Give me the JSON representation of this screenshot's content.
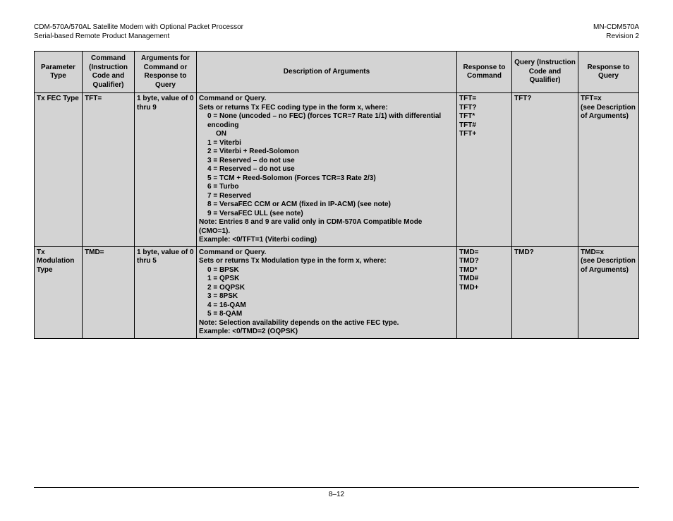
{
  "header": {
    "left_line1": "CDM-570A/570AL Satellite Modem with Optional Packet Processor",
    "left_line2": "Serial-based Remote Product Management",
    "right_line1": "MN-CDM570A",
    "right_line2": "Revision 2"
  },
  "columns": {
    "c1": "Parameter Type",
    "c2": "Command (Instruction Code and Qualifier)",
    "c3": "Arguments for Command or Response to Query",
    "c4": "Description of Arguments",
    "c5": "Response to Command",
    "c6": "Query (Instruction Code and Qualifier)",
    "c7": "Response to Query"
  },
  "rows": [
    {
      "param": "Tx FEC Type",
      "cmd": "TFT=",
      "args_l1": "1 byte, value of 0",
      "args_l2": "thru 9",
      "desc": [
        {
          "t": "Command or Query.",
          "cls": "bold"
        },
        {
          "t": "Sets or returns Tx FEC coding type in the form x, where:",
          "cls": "bold"
        },
        {
          "t": "0 = None (uncoded – no FEC) (forces TCR=7 Rate 1/1) with  differential encoding",
          "cls": "indent1 bold"
        },
        {
          "t": "ON",
          "cls": "indent2 bold"
        },
        {
          "t": "1 = Viterbi",
          "cls": "indent1 bold"
        },
        {
          "t": "2 = Viterbi + Reed-Solomon",
          "cls": "indent1 bold"
        },
        {
          "t": "3 = Reserved – do not use",
          "cls": "indent1 bold"
        },
        {
          "t": "4 = Reserved – do not use",
          "cls": "indent1 bold"
        },
        {
          "t": "5 = TCM + Reed-Solomon  (Forces TCR=3 Rate 2/3)",
          "cls": "indent1 bold"
        },
        {
          "t": "6 = Turbo",
          "cls": "indent1 bold"
        },
        {
          "t": "7 = Reserved",
          "cls": "indent1 bold"
        },
        {
          "t": "8 = VersaFEC CCM or ACM (fixed in IP-ACM) (see note)",
          "cls": "indent1 bold"
        },
        {
          "t": "9 = VersaFEC ULL (see note)",
          "cls": "indent1 bold"
        },
        {
          "t": "Note: Entries 8 and 9 are valid only in CDM-570A Compatible Mode (CMO=1).",
          "cls": "bold"
        },
        {
          "t": "Example: <0/TFT=1 (Viterbi coding)",
          "cls": "bold"
        }
      ],
      "respc": [
        "TFT=",
        "TFT?",
        "TFT*",
        "TFT#",
        "TFT+"
      ],
      "query": "TFT?",
      "respq": [
        "TFT=x",
        "(see Description",
        "of Arguments)"
      ]
    },
    {
      "param": "Tx Modulation Type",
      "cmd": "TMD=",
      "args_l1": "1 byte, value of 0",
      "args_l2": "thru 5",
      "desc": [
        {
          "t": "Command or Query.",
          "cls": "bold"
        },
        {
          "t": "Sets or returns Tx Modulation type in the form x, where:",
          "cls": "bold"
        },
        {
          "t": "0 = BPSK",
          "cls": "indent1 bold"
        },
        {
          "t": "1 = QPSK",
          "cls": "indent1 bold"
        },
        {
          "t": "2 = OQPSK",
          "cls": "indent1 bold"
        },
        {
          "t": "3 = 8PSK",
          "cls": "indent1 bold"
        },
        {
          "t": "4 = 16-QAM",
          "cls": "indent1 bold"
        },
        {
          "t": "5 = 8-QAM",
          "cls": "indent1 bold"
        },
        {
          "t": "Note: Selection availability depends on the active FEC type.",
          "cls": "bold"
        },
        {
          "t": "Example: <0/TMD=2 (OQPSK)",
          "cls": "bold"
        }
      ],
      "respc": [
        "TMD=",
        "TMD?",
        "TMD*",
        "TMD#",
        "TMD+"
      ],
      "query": "TMD?",
      "respq": [
        "TMD=x",
        "(see Description",
        "of Arguments)"
      ]
    }
  ],
  "footer": {
    "page": "8–12"
  }
}
